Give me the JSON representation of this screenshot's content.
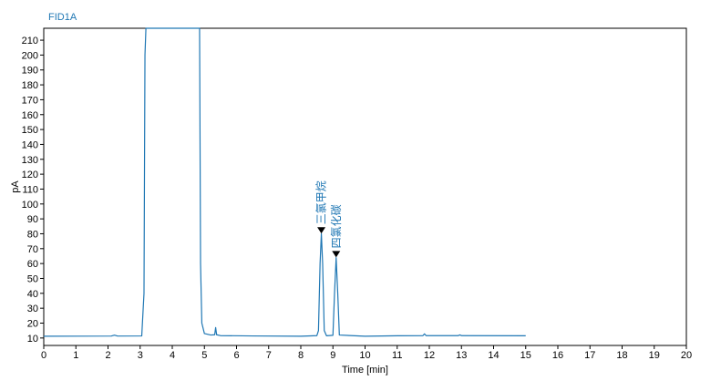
{
  "chart_data": {
    "type": "line",
    "signal_label": "FID1A",
    "xlabel": "Time [min]",
    "ylabel": "pA",
    "xlim": [
      0,
      20
    ],
    "ylim": [
      5,
      218
    ],
    "x_ticks": [
      0,
      1,
      2,
      3,
      4,
      5,
      6,
      7,
      8,
      9,
      10,
      11,
      12,
      13,
      14,
      15,
      16,
      17,
      18,
      19,
      20
    ],
    "y_ticks": [
      10,
      20,
      30,
      40,
      50,
      60,
      70,
      80,
      90,
      100,
      110,
      120,
      130,
      140,
      150,
      160,
      170,
      180,
      190,
      200,
      210
    ],
    "grid": false,
    "line_color": "#1f77b4",
    "series": [
      {
        "points": [
          [
            0.0,
            11.2
          ],
          [
            2.1,
            11.3
          ],
          [
            2.2,
            11.9
          ],
          [
            2.3,
            11.3
          ],
          [
            3.05,
            11.4
          ],
          [
            3.12,
            40
          ],
          [
            3.15,
            200
          ],
          [
            3.18,
            218
          ],
          [
            4.85,
            218
          ],
          [
            4.88,
            60
          ],
          [
            4.92,
            20
          ],
          [
            5.0,
            13
          ],
          [
            5.2,
            12
          ],
          [
            5.32,
            12.2
          ],
          [
            5.35,
            17
          ],
          [
            5.38,
            12.2
          ],
          [
            5.5,
            11.6
          ],
          [
            6.5,
            11.4
          ],
          [
            8.0,
            11.2
          ],
          [
            8.5,
            11.6
          ],
          [
            8.55,
            15
          ],
          [
            8.6,
            60
          ],
          [
            8.64,
            80
          ],
          [
            8.68,
            60
          ],
          [
            8.73,
            15
          ],
          [
            8.8,
            11.5
          ],
          [
            9.0,
            11.8
          ],
          [
            9.05,
            40
          ],
          [
            9.1,
            64
          ],
          [
            9.15,
            40
          ],
          [
            9.2,
            12
          ],
          [
            10.0,
            11.2
          ],
          [
            11.0,
            11.5
          ],
          [
            11.8,
            11.6
          ],
          [
            11.85,
            12.8
          ],
          [
            11.9,
            11.6
          ],
          [
            12.9,
            11.6
          ],
          [
            12.95,
            12.1
          ],
          [
            13.0,
            11.6
          ],
          [
            15.0,
            11.5
          ]
        ]
      }
    ],
    "annotations": [
      {
        "label": "三氯甲烷",
        "x": 8.64,
        "y": 82
      },
      {
        "label": "四氯化碳",
        "x": 9.1,
        "y": 66
      }
    ]
  }
}
